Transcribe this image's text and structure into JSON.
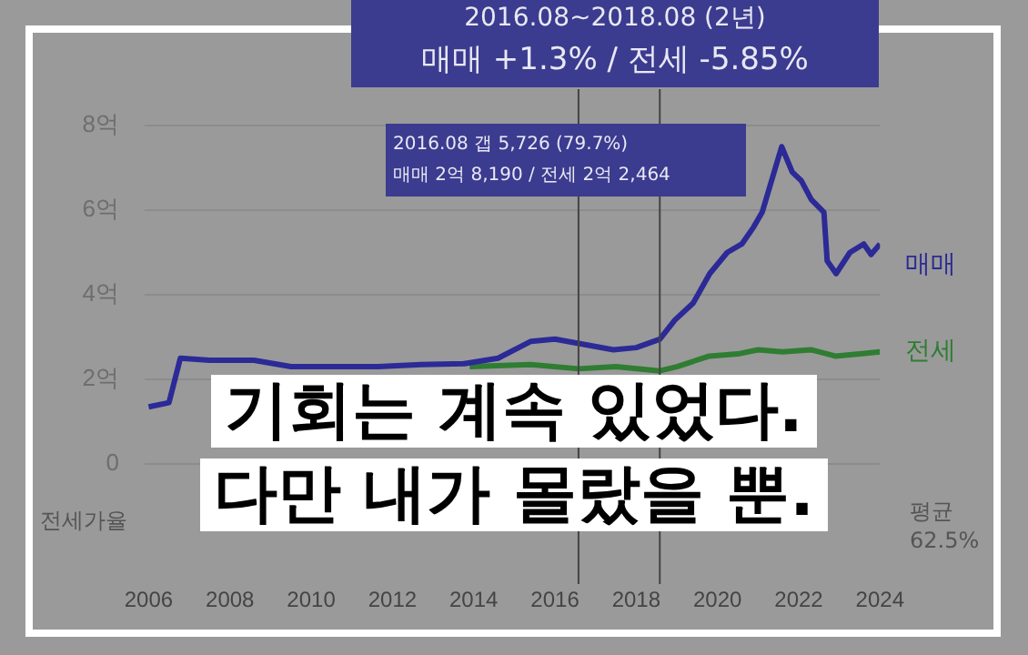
{
  "chart_data": {
    "type": "line",
    "title": "기회는 계속 있었다.",
    "subtitle": "다만 내가 몰랐을 뿐.",
    "annotations": [
      "2016.08~2018.08 (2년)",
      "매매 +1.3% / 전세 -5.85%",
      "2016.08 갭 5,726 (79.7%)",
      "매매 2억 8,190 / 전세 2억 2,464",
      "전세가율",
      "평균 62.5%"
    ],
    "series": [
      {
        "name": "매매",
        "color": "#2c2a96",
        "x": [
          2006,
          2006.5,
          2006.78,
          2007.5,
          2008.59,
          2009.5,
          2010.5,
          2011.65,
          2012.7,
          2013.77,
          2014.6,
          2015.41,
          2016.0,
          2016.58,
          2017.44,
          2018.0,
          2018.58,
          2018.95,
          2019.4,
          2019.81,
          2020.24,
          2020.6,
          2020.89,
          2021.1,
          2021.58,
          2021.84,
          2022.06,
          2022.31,
          2022.62,
          2022.7,
          2022.92,
          2023.26,
          2023.6,
          2023.78,
          2024
        ],
        "values": [
          1.35,
          1.45,
          2.5,
          2.45,
          2.45,
          2.3,
          2.3,
          2.3,
          2.35,
          2.37,
          2.5,
          2.9,
          2.95,
          2.85,
          2.7,
          2.75,
          2.95,
          3.4,
          3.8,
          4.5,
          5.0,
          5.2,
          5.6,
          5.95,
          7.5,
          6.9,
          6.7,
          6.25,
          5.95,
          4.8,
          4.5,
          5.0,
          5.2,
          4.95,
          5.2
        ]
      },
      {
        "name": "전세",
        "color": "#2f7d32",
        "x": [
          2013.9,
          2015.4,
          2016.58,
          2017.5,
          2018.58,
          2019.0,
          2019.8,
          2020.5,
          2021.0,
          2021.6,
          2022.3,
          2022.9,
          2023.5,
          2024
        ],
        "values": [
          2.3,
          2.35,
          2.25,
          2.3,
          2.2,
          2.3,
          2.55,
          2.6,
          2.7,
          2.65,
          2.7,
          2.55,
          2.6,
          2.65
        ]
      }
    ],
    "xlim": [
      2005.9,
      2024
    ],
    "xticks": [
      2006,
      2008,
      2010,
      2012,
      2014,
      2016,
      2018,
      2020,
      2022,
      2024
    ],
    "ylim": [
      0,
      8
    ],
    "yticks": [
      0,
      {
        "value": 2,
        "label": "2억"
      },
      {
        "value": 4,
        "label": "4억"
      },
      {
        "value": 6,
        "label": "6억"
      },
      {
        "value": 8,
        "label": "8억"
      }
    ],
    "ref_lines": [
      {
        "axis": "x",
        "value": 2016.58,
        "color": "#444444"
      },
      {
        "axis": "x",
        "value": 2018.58,
        "color": "#444444"
      }
    ],
    "grid": "y",
    "legend": false,
    "line_style": "solid",
    "marker": "none"
  }
}
